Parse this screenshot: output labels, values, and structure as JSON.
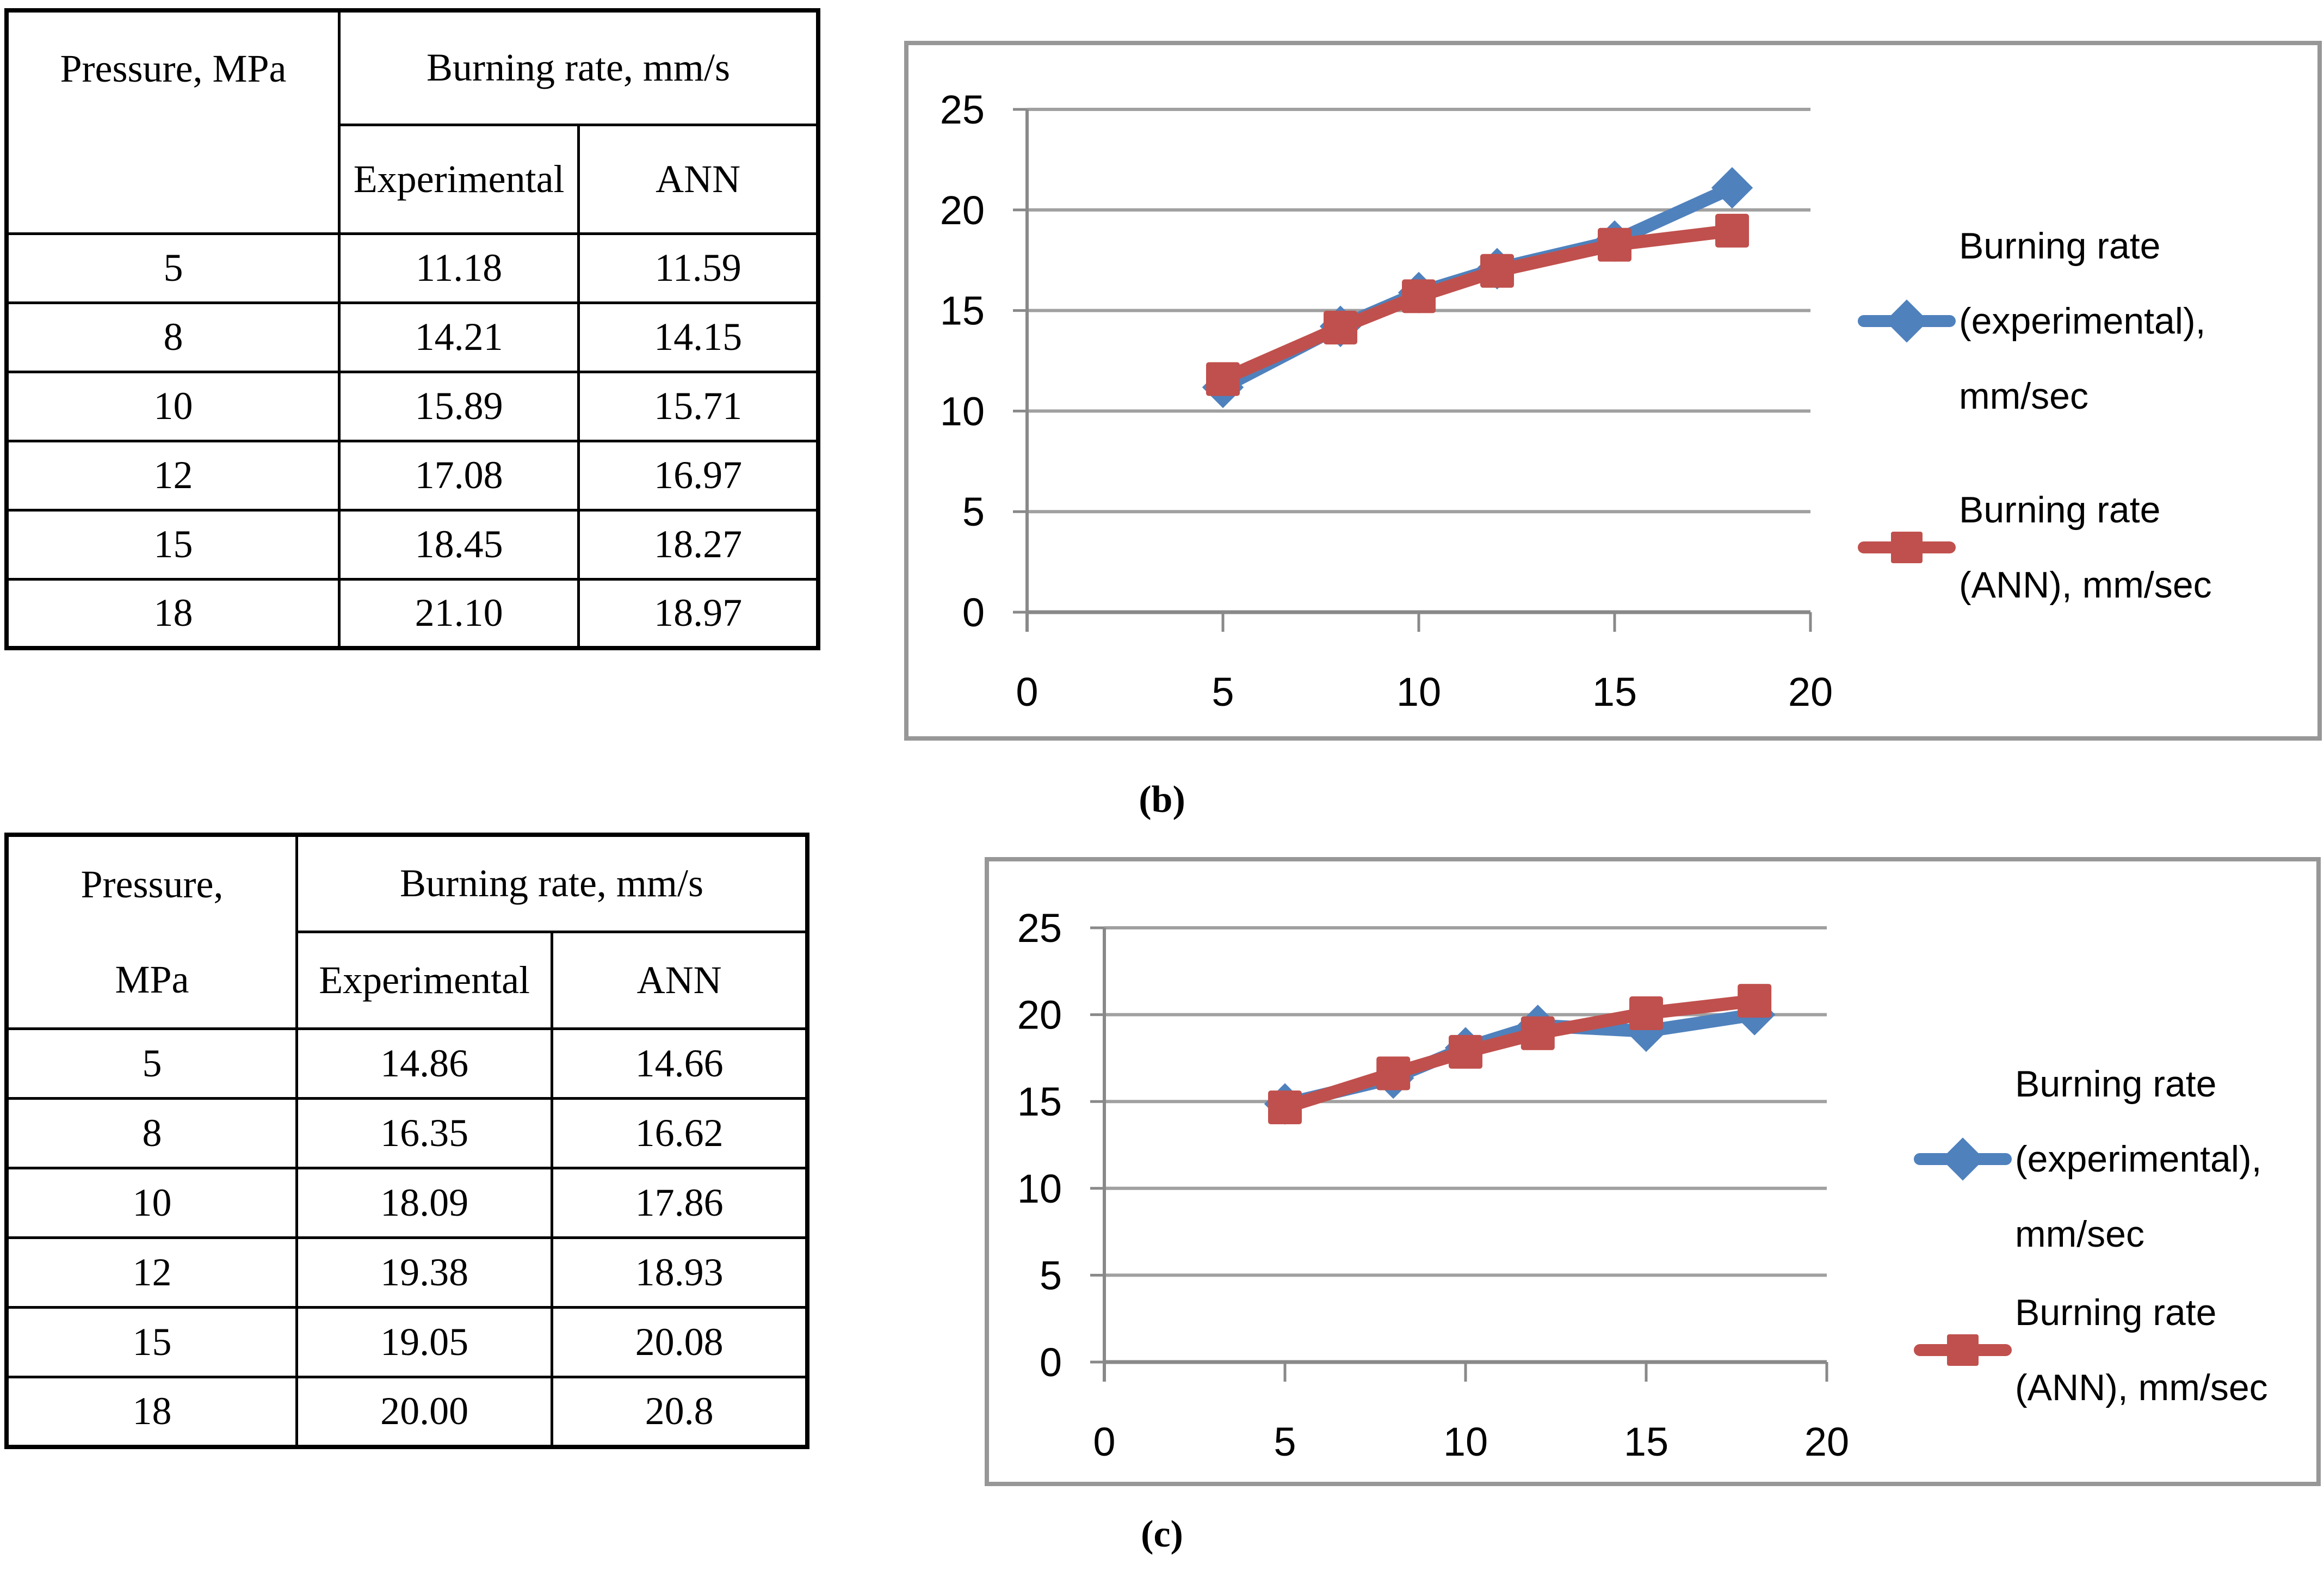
{
  "page": {
    "background": "#ffffff"
  },
  "captions": {
    "b": "(b)",
    "c": "(c)"
  },
  "colors": {
    "experimental_series": "#4F81BD",
    "ann_series": "#C0504D",
    "gridline": "#A0A0A0",
    "axis": "#898989",
    "chart_frame": "#979797",
    "table_border": "#000000",
    "text": "#000000"
  },
  "tables": [
    {
      "panel": "b",
      "header": {
        "pressure": "Pressure, MPa",
        "group": "Burning rate, mm/s",
        "experimental": "Experimental",
        "ann": "ANN"
      },
      "rows": [
        [
          "5",
          "11.18",
          "11.59"
        ],
        [
          "8",
          "14.21",
          "14.15"
        ],
        [
          "10",
          "15.89",
          "15.71"
        ],
        [
          "12",
          "17.08",
          "16.97"
        ],
        [
          "15",
          "18.45",
          "18.27"
        ],
        [
          "18",
          "21.10",
          "18.97"
        ]
      ]
    },
    {
      "panel": "c",
      "header": {
        "pressure": "Pressure,\nMPa",
        "group": "Burning rate, mm/s",
        "experimental": "Experimental",
        "ann": "ANN"
      },
      "rows": [
        [
          "5",
          "14.86",
          "14.66"
        ],
        [
          "8",
          "16.35",
          "16.62"
        ],
        [
          "10",
          "18.09",
          "17.86"
        ],
        [
          "12",
          "19.38",
          "18.93"
        ],
        [
          "15",
          "19.05",
          "20.08"
        ],
        [
          "18",
          "20.00",
          "20.8"
        ]
      ]
    }
  ],
  "chart_data": [
    {
      "type": "line",
      "panel": "b",
      "title": "",
      "xlabel": "",
      "ylabel": "",
      "x": [
        5,
        8,
        10,
        12,
        15,
        18
      ],
      "series": [
        {
          "name": "Burning rate (experimental), mm/sec",
          "legend_lines": "Burning rate\n(experimental),\nmm/sec",
          "values": [
            11.18,
            14.21,
            15.89,
            17.08,
            18.45,
            21.1
          ],
          "color": "#4F81BD",
          "marker": "diamond"
        },
        {
          "name": "Burning rate (ANN), mm/sec",
          "legend_lines": "Burning rate\n(ANN), mm/sec",
          "values": [
            11.59,
            14.15,
            15.71,
            16.97,
            18.27,
            18.97
          ],
          "color": "#C0504D",
          "marker": "square"
        }
      ],
      "xlim": [
        0,
        20
      ],
      "ylim": [
        0,
        25
      ],
      "x_ticks": [
        0,
        5,
        10,
        15,
        20
      ],
      "y_ticks": [
        0,
        5,
        10,
        15,
        20,
        25
      ],
      "grid": true,
      "legend_position": "right"
    },
    {
      "type": "line",
      "panel": "c",
      "title": "",
      "xlabel": "",
      "ylabel": "",
      "x": [
        5,
        8,
        10,
        12,
        15,
        18
      ],
      "series": [
        {
          "name": "Burning rate (experimental), mm/sec",
          "legend_lines": "Burning rate\n(experimental),\nmm/sec",
          "values": [
            14.86,
            16.35,
            18.09,
            19.38,
            19.05,
            20.0
          ],
          "color": "#4F81BD",
          "marker": "diamond"
        },
        {
          "name": "Burning rate (ANN), mm/sec",
          "legend_lines": "Burning rate\n(ANN), mm/sec",
          "values": [
            14.66,
            16.62,
            17.86,
            18.93,
            20.08,
            20.8
          ],
          "color": "#C0504D",
          "marker": "square"
        }
      ],
      "xlim": [
        0,
        20
      ],
      "ylim": [
        0,
        25
      ],
      "x_ticks": [
        0,
        5,
        10,
        15,
        20
      ],
      "y_ticks": [
        0,
        5,
        10,
        15,
        20,
        25
      ],
      "grid": true,
      "legend_position": "right"
    }
  ]
}
